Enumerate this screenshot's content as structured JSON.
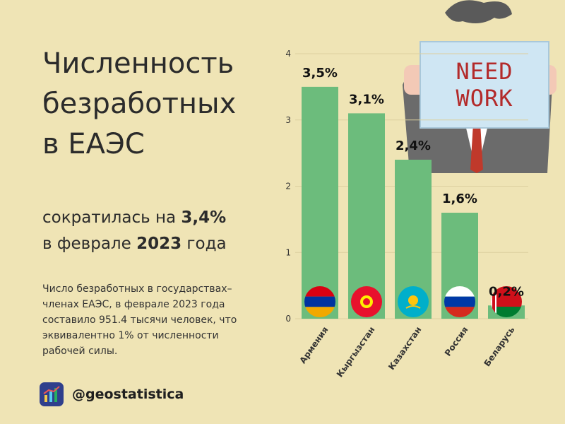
{
  "header": {
    "title_line1": "Численность",
    "title_line2": "безработных",
    "title_line3": "в ЕАЭС",
    "sub_pre": "сократилась на ",
    "sub_pct": "3,4%",
    "sub_mid": "в феврале ",
    "sub_year": "2023",
    "sub_post": " года"
  },
  "note": {
    "line1": "Число безработных в государствах–",
    "line2": "членах ЕАЭС, в феврале 2023 года",
    "line3": "составило 951.4 тысячи человек, что",
    "line4": "эквивалентно 1% от численности",
    "line5": "рабочей силы."
  },
  "brand": {
    "handle": "@geostatistica"
  },
  "sign": {
    "line1": "NEED",
    "line2": "WORK"
  },
  "colors": {
    "background": "#efe4b5",
    "bar": "#6cbc7c",
    "accent": "#b32a2a"
  },
  "chart_data": {
    "type": "bar",
    "categories": [
      "Армения",
      "Кыргызстан",
      "Казахстан",
      "Россия",
      "Беларусь"
    ],
    "values": [
      3.5,
      3.1,
      2.4,
      1.6,
      0.2
    ],
    "value_labels": [
      "3,5%",
      "3,1%",
      "2,4%",
      "1,6%",
      "0,2%"
    ],
    "flags": [
      "armenia-flag",
      "kyrgyzstan-flag",
      "kazakhstan-flag",
      "russia-flag",
      "belarus-flag"
    ],
    "yticks": [
      0,
      1,
      2,
      3,
      4
    ],
    "ylim": [
      0,
      4
    ],
    "grid": true,
    "title": "",
    "xlabel": "",
    "ylabel": ""
  }
}
